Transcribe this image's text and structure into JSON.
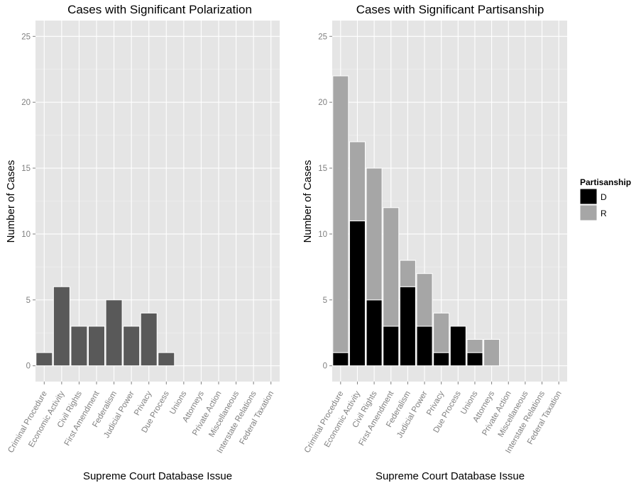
{
  "chart_data": [
    {
      "type": "bar",
      "title": "Cases with Significant Polarization",
      "xlabel": "Supreme Court Database Issue",
      "ylabel": "Number of Cases",
      "ylim": [
        -1.2,
        26.2
      ],
      "yticks": [
        0,
        5,
        10,
        15,
        20,
        25
      ],
      "grid": true,
      "categories": [
        "Criminal Procedure",
        "Economic Activity",
        "Civil Rights",
        "First Amendment",
        "Federalism",
        "Judicial Power",
        "Privacy",
        "Due Process",
        "Unions",
        "Attorneys",
        "Private Action",
        "Miscellaneous",
        "Interstate Relations",
        "Federal Taxation"
      ],
      "series": [
        {
          "values": [
            1,
            6,
            3,
            3,
            5,
            3,
            4,
            1,
            0,
            0,
            0,
            0,
            0,
            0
          ],
          "color": "#595959"
        }
      ]
    },
    {
      "type": "bar",
      "stacked": true,
      "title": "Cases with Significant Partisanship",
      "xlabel": "Supreme Court Database Issue",
      "ylabel": "Number of Cases",
      "ylim": [
        -1.2,
        26.2
      ],
      "yticks": [
        0,
        5,
        10,
        15,
        20,
        25
      ],
      "grid": true,
      "legend_title": "Partisanship",
      "legend_position": "right",
      "categories": [
        "Criminal Procedure",
        "Economic Activity",
        "Civil Rights",
        "First Amendment",
        "Federalism",
        "Judicial Power",
        "Privacy",
        "Due Process",
        "Unions",
        "Attorneys",
        "Private Action",
        "Miscellaneous",
        "Interstate Relations",
        "Federal Taxation"
      ],
      "series": [
        {
          "name": "D",
          "values": [
            1,
            11,
            5,
            3,
            6,
            3,
            1,
            3,
            1,
            0,
            0,
            0,
            0,
            0
          ],
          "color": "#000000"
        },
        {
          "name": "R",
          "values": [
            21,
            6,
            10,
            9,
            2,
            4,
            3,
            0,
            1,
            2,
            0,
            0,
            0,
            0
          ],
          "color": "#a6a6a6"
        }
      ]
    }
  ],
  "colors": {
    "panel_background": "#e5e5e5",
    "grid": "#ffffff"
  }
}
